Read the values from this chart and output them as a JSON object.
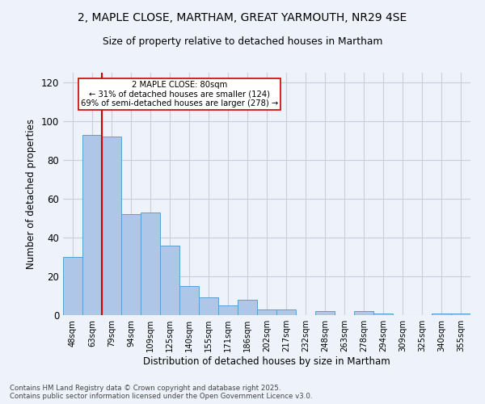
{
  "title": "2, MAPLE CLOSE, MARTHAM, GREAT YARMOUTH, NR29 4SE",
  "subtitle": "Size of property relative to detached houses in Martham",
  "xlabel": "Distribution of detached houses by size in Martham",
  "ylabel": "Number of detached properties",
  "categories": [
    "48sqm",
    "63sqm",
    "79sqm",
    "94sqm",
    "109sqm",
    "125sqm",
    "140sqm",
    "155sqm",
    "171sqm",
    "186sqm",
    "202sqm",
    "217sqm",
    "232sqm",
    "248sqm",
    "263sqm",
    "278sqm",
    "294sqm",
    "309sqm",
    "325sqm",
    "340sqm",
    "355sqm"
  ],
  "values": [
    30,
    93,
    92,
    52,
    53,
    36,
    15,
    9,
    5,
    8,
    3,
    3,
    0,
    2,
    0,
    2,
    1,
    0,
    0,
    1,
    1
  ],
  "bar_color": "#aec6e8",
  "bar_edge_color": "#5a9fd4",
  "marker_line_index": 2,
  "marker_label": "2 MAPLE CLOSE: 80sqm",
  "annotation_line1": "← 31% of detached houses are smaller (124)",
  "annotation_line2": "69% of semi-detached houses are larger (278) →",
  "box_color": "#ffffff",
  "box_edge_color": "#cc0000",
  "vline_color": "#cc0000",
  "ylim": [
    0,
    125
  ],
  "yticks": [
    0,
    20,
    40,
    60,
    80,
    100,
    120
  ],
  "grid_color": "#c8d0e0",
  "background_color": "#eef2fa",
  "footer_line1": "Contains HM Land Registry data © Crown copyright and database right 2025.",
  "footer_line2": "Contains public sector information licensed under the Open Government Licence v3.0."
}
